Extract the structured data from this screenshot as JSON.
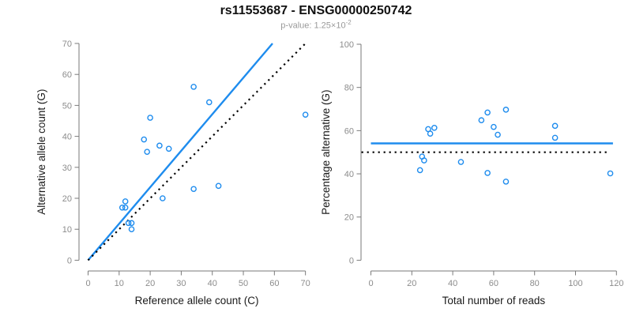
{
  "header": {
    "title": "rs11553687 - ENSG00000250742",
    "subtitle_prefix": "p-value: ",
    "subtitle_value": "1.25×10",
    "subtitle_exponent": "-2"
  },
  "colors": {
    "accent_blue": "#1E8CEE",
    "line_black": "#000000",
    "axis_gray": "#7a7a7a",
    "tick_label_gray": "#8c8c8c",
    "axis_title_black": "#1a1a1a"
  },
  "chart_data": [
    {
      "type": "scatter",
      "panel": "left",
      "xlabel": "Reference allele count (C)",
      "ylabel": "Alternative allele count (G)",
      "xlim": [
        0,
        70
      ],
      "ylim": [
        0,
        70
      ],
      "xticks": [
        0,
        10,
        20,
        30,
        40,
        50,
        60,
        70
      ],
      "yticks": [
        0,
        10,
        20,
        30,
        40,
        50,
        60,
        70
      ],
      "grid": false,
      "legend": "none",
      "points": [
        [
          11,
          17
        ],
        [
          12,
          17
        ],
        [
          12,
          19
        ],
        [
          13,
          12
        ],
        [
          14,
          12
        ],
        [
          14,
          10
        ],
        [
          18,
          39
        ],
        [
          19,
          35
        ],
        [
          20,
          46
        ],
        [
          23,
          37
        ],
        [
          24,
          20
        ],
        [
          26,
          36
        ],
        [
          34,
          23
        ],
        [
          34,
          56
        ],
        [
          39,
          51
        ],
        [
          42,
          24
        ],
        [
          70,
          47
        ]
      ],
      "lines": [
        {
          "name": "fit-line",
          "style": "solid",
          "color": "blue",
          "x1": 0,
          "y1": 0,
          "x2": 59.4,
          "y2": 70
        },
        {
          "name": "identity-line",
          "style": "dotted",
          "color": "black",
          "x1": 0,
          "y1": 0,
          "x2": 70,
          "y2": 70
        }
      ]
    },
    {
      "type": "scatter",
      "panel": "right",
      "xlabel": "Total number of reads",
      "ylabel": "Percentage alternative (G)",
      "xlim": [
        0,
        120
      ],
      "ylim": [
        0,
        100
      ],
      "xticks": [
        0,
        20,
        40,
        60,
        80,
        100,
        120
      ],
      "yticks": [
        0,
        20,
        40,
        60,
        80,
        100
      ],
      "grid": false,
      "legend": "none",
      "points": [
        [
          28,
          60.7
        ],
        [
          29,
          58.6
        ],
        [
          31,
          61.3
        ],
        [
          25,
          48.0
        ],
        [
          26,
          46.2
        ],
        [
          24,
          41.7
        ],
        [
          57,
          68.4
        ],
        [
          54,
          64.8
        ],
        [
          66,
          69.7
        ],
        [
          60,
          61.7
        ],
        [
          44,
          45.5
        ],
        [
          62,
          58.1
        ],
        [
          57,
          40.4
        ],
        [
          90,
          62.2
        ],
        [
          90,
          56.7
        ],
        [
          66,
          36.4
        ],
        [
          117,
          40.2
        ]
      ],
      "lines": [
        {
          "name": "mean-line",
          "style": "solid",
          "color": "blue",
          "x1": 0,
          "y1": 54.1,
          "x2": 118.3,
          "y2": 54.1
        },
        {
          "name": "null-line",
          "style": "dotted",
          "color": "black",
          "x1": -4.6,
          "y1": 50,
          "x2": 116,
          "y2": 50
        }
      ]
    }
  ]
}
